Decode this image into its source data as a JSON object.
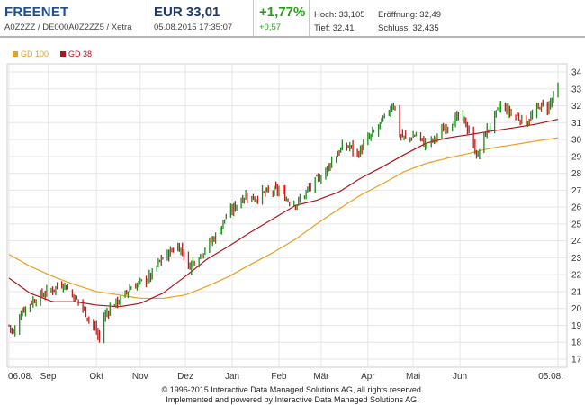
{
  "header": {
    "name": "FREENET",
    "ids": "A0Z2ZZ / DE000A0Z2ZZ5 / Xetra",
    "price": "EUR 33,01",
    "datetime": "05.08.2015 17:35:07",
    "change_pct": "+1,77%",
    "change_abs": "+0,57",
    "high": "Hoch: 33,105",
    "open": "Eröffnung: 32,49",
    "low": "Tief: 32,41",
    "close": "Schluss: 32,435"
  },
  "legend": {
    "gd100": "GD 100",
    "gd38": "GD 38"
  },
  "colors": {
    "up": "#1e8a1e",
    "down": "#c41a1a",
    "gd100": "#e8a020",
    "gd38": "#b0141c",
    "grid": "#e6e6e6"
  },
  "chart_data": {
    "type": "line",
    "x_tick_labels": [
      "06.08.",
      "Sep",
      "Okt",
      "Nov",
      "Dez",
      "Jan",
      "Feb",
      "Mär",
      "Apr",
      "Mai",
      "Jun",
      "05.08."
    ],
    "x_tick_days": [
      0,
      26,
      58,
      87,
      117,
      148,
      179,
      207,
      238,
      268,
      299,
      364
    ],
    "x_range": [
      0,
      364
    ],
    "ylim": [
      17,
      34
    ],
    "y_ticks": [
      17,
      18,
      19,
      20,
      21,
      22,
      23,
      24,
      25,
      26,
      27,
      28,
      29,
      30,
      31,
      32,
      33,
      34
    ],
    "grid": true,
    "legend_position": "top-left",
    "price_keyframes": [
      [
        0,
        19.0
      ],
      [
        3,
        18.5
      ],
      [
        8,
        19.8
      ],
      [
        15,
        20.4
      ],
      [
        22,
        20.8
      ],
      [
        30,
        21.2
      ],
      [
        36,
        21.5
      ],
      [
        42,
        20.8
      ],
      [
        48,
        20.2
      ],
      [
        53,
        19.4
      ],
      [
        57,
        18.8
      ],
      [
        60,
        18.2
      ],
      [
        63,
        19.5
      ],
      [
        68,
        20.2
      ],
      [
        74,
        20.5
      ],
      [
        80,
        21.2
      ],
      [
        87,
        21.5
      ],
      [
        94,
        21.9
      ],
      [
        100,
        22.8
      ],
      [
        106,
        23.3
      ],
      [
        112,
        23.7
      ],
      [
        116,
        23.3
      ],
      [
        118,
        22.3
      ],
      [
        122,
        22.8
      ],
      [
        127,
        23.2
      ],
      [
        132,
        23.8
      ],
      [
        138,
        24.4
      ],
      [
        143,
        25.3
      ],
      [
        147,
        25.7
      ],
      [
        152,
        26.3
      ],
      [
        157,
        26.7
      ],
      [
        163,
        26.5
      ],
      [
        168,
        26.8
      ],
      [
        173,
        26.9
      ],
      [
        180,
        27.0
      ],
      [
        185,
        26.4
      ],
      [
        191,
        26.2
      ],
      [
        196,
        26.8
      ],
      [
        203,
        27.5
      ],
      [
        209,
        28.0
      ],
      [
        215,
        28.9
      ],
      [
        221,
        29.5
      ],
      [
        226,
        29.6
      ],
      [
        231,
        29.1
      ],
      [
        236,
        29.8
      ],
      [
        241,
        30.3
      ],
      [
        247,
        31.0
      ],
      [
        252,
        31.7
      ],
      [
        255,
        32.2
      ],
      [
        259,
        30.3
      ],
      [
        264,
        30.0
      ],
      [
        270,
        30.3
      ],
      [
        276,
        29.7
      ],
      [
        282,
        30.0
      ],
      [
        288,
        30.6
      ],
      [
        294,
        31.1
      ],
      [
        300,
        31.4
      ],
      [
        305,
        30.5
      ],
      [
        308,
        29.6
      ],
      [
        311,
        29.0
      ],
      [
        315,
        30.2
      ],
      [
        320,
        31.0
      ],
      [
        326,
        32.0
      ],
      [
        332,
        31.6
      ],
      [
        338,
        31.3
      ],
      [
        343,
        31.0
      ],
      [
        348,
        31.5
      ],
      [
        352,
        32.0
      ],
      [
        357,
        31.9
      ],
      [
        361,
        32.5
      ],
      [
        364,
        33.0
      ]
    ],
    "gd100_keyframes": [
      [
        0,
        23.2
      ],
      [
        14,
        22.5
      ],
      [
        29,
        21.9
      ],
      [
        44,
        21.4
      ],
      [
        58,
        21.0
      ],
      [
        73,
        20.8
      ],
      [
        87,
        20.6
      ],
      [
        102,
        20.6
      ],
      [
        117,
        20.8
      ],
      [
        131,
        21.3
      ],
      [
        146,
        21.9
      ],
      [
        160,
        22.6
      ],
      [
        175,
        23.3
      ],
      [
        190,
        24.1
      ],
      [
        204,
        25.0
      ],
      [
        219,
        25.9
      ],
      [
        233,
        26.7
      ],
      [
        248,
        27.4
      ],
      [
        262,
        28.1
      ],
      [
        277,
        28.6
      ],
      [
        291,
        28.9
      ],
      [
        306,
        29.2
      ],
      [
        320,
        29.5
      ],
      [
        335,
        29.7
      ],
      [
        349,
        29.9
      ],
      [
        364,
        30.1
      ]
    ],
    "gd38_keyframes": [
      [
        0,
        21.8
      ],
      [
        14,
        20.9
      ],
      [
        29,
        20.4
      ],
      [
        44,
        20.4
      ],
      [
        58,
        20.2
      ],
      [
        73,
        20.1
      ],
      [
        87,
        20.3
      ],
      [
        102,
        20.9
      ],
      [
        117,
        21.9
      ],
      [
        131,
        22.9
      ],
      [
        146,
        23.7
      ],
      [
        160,
        24.5
      ],
      [
        175,
        25.3
      ],
      [
        190,
        26.1
      ],
      [
        204,
        26.4
      ],
      [
        219,
        26.9
      ],
      [
        233,
        27.7
      ],
      [
        248,
        28.4
      ],
      [
        262,
        29.1
      ],
      [
        277,
        29.8
      ],
      [
        291,
        30.1
      ],
      [
        306,
        30.3
      ],
      [
        320,
        30.5
      ],
      [
        335,
        30.7
      ],
      [
        349,
        30.9
      ],
      [
        364,
        31.2
      ]
    ]
  },
  "footer": {
    "line1": "© 1996-2015 Interactive Data Managed Solutions AG, all rights reserved.",
    "line2": "Implemented and powered by Interactive Data Managed Solutions AG."
  }
}
